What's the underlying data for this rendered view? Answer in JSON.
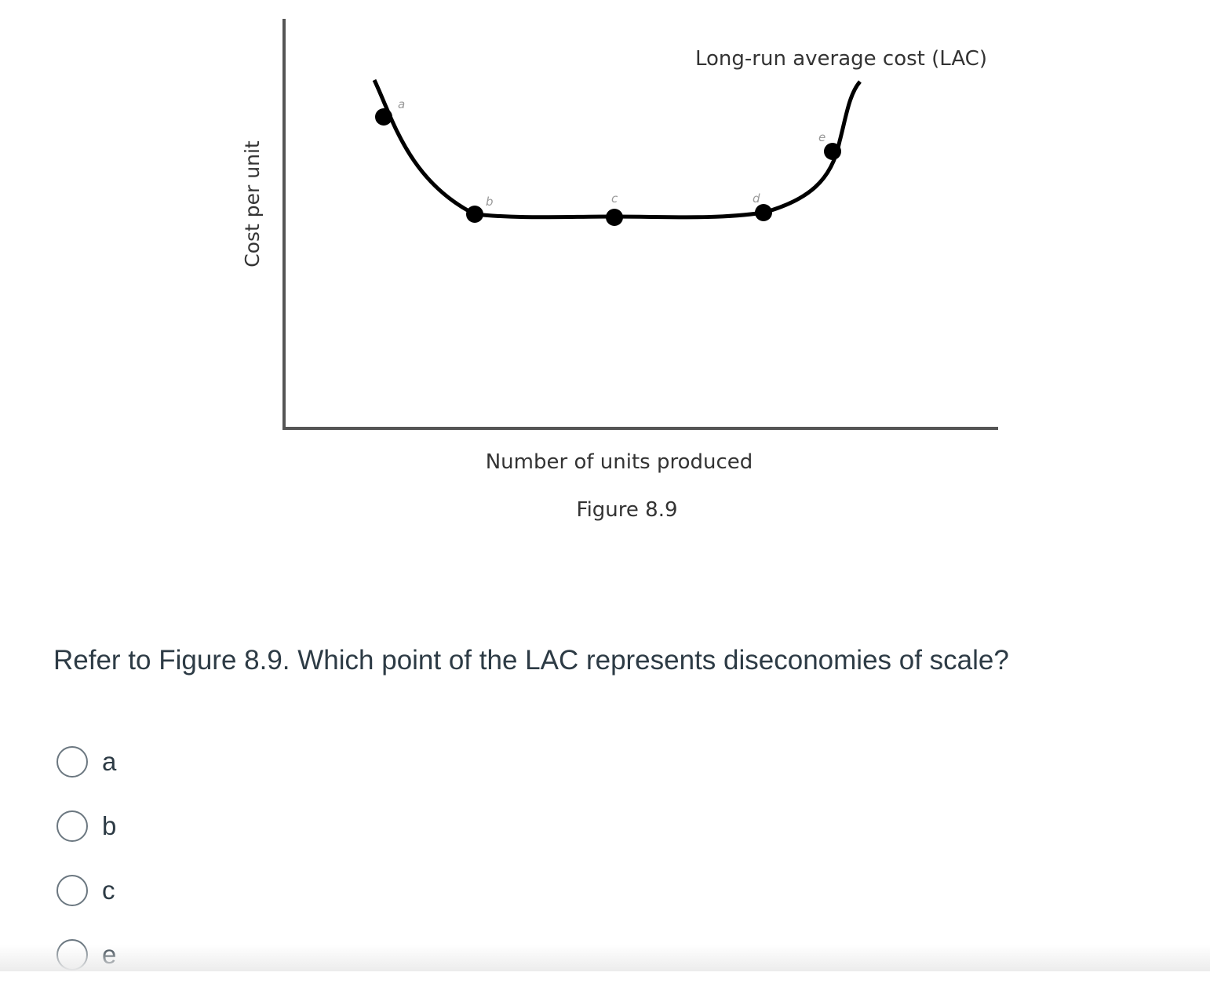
{
  "figure": {
    "curve_label": "Long-run average cost (LAC)",
    "ylabel": "Cost per unit",
    "xlabel": "Number of units produced",
    "caption": "Figure 8.9",
    "points": [
      {
        "label": "a"
      },
      {
        "label": "b"
      },
      {
        "label": "c"
      },
      {
        "label": "d"
      },
      {
        "label": "e"
      }
    ],
    "line_color": "#000000",
    "axis_color": "#555555"
  },
  "question": {
    "text": "Refer to Figure 8.9. Which point of the LAC represents diseconomies of scale?"
  },
  "answers": [
    {
      "label": "a"
    },
    {
      "label": "b"
    },
    {
      "label": "c"
    },
    {
      "label": "e"
    }
  ]
}
